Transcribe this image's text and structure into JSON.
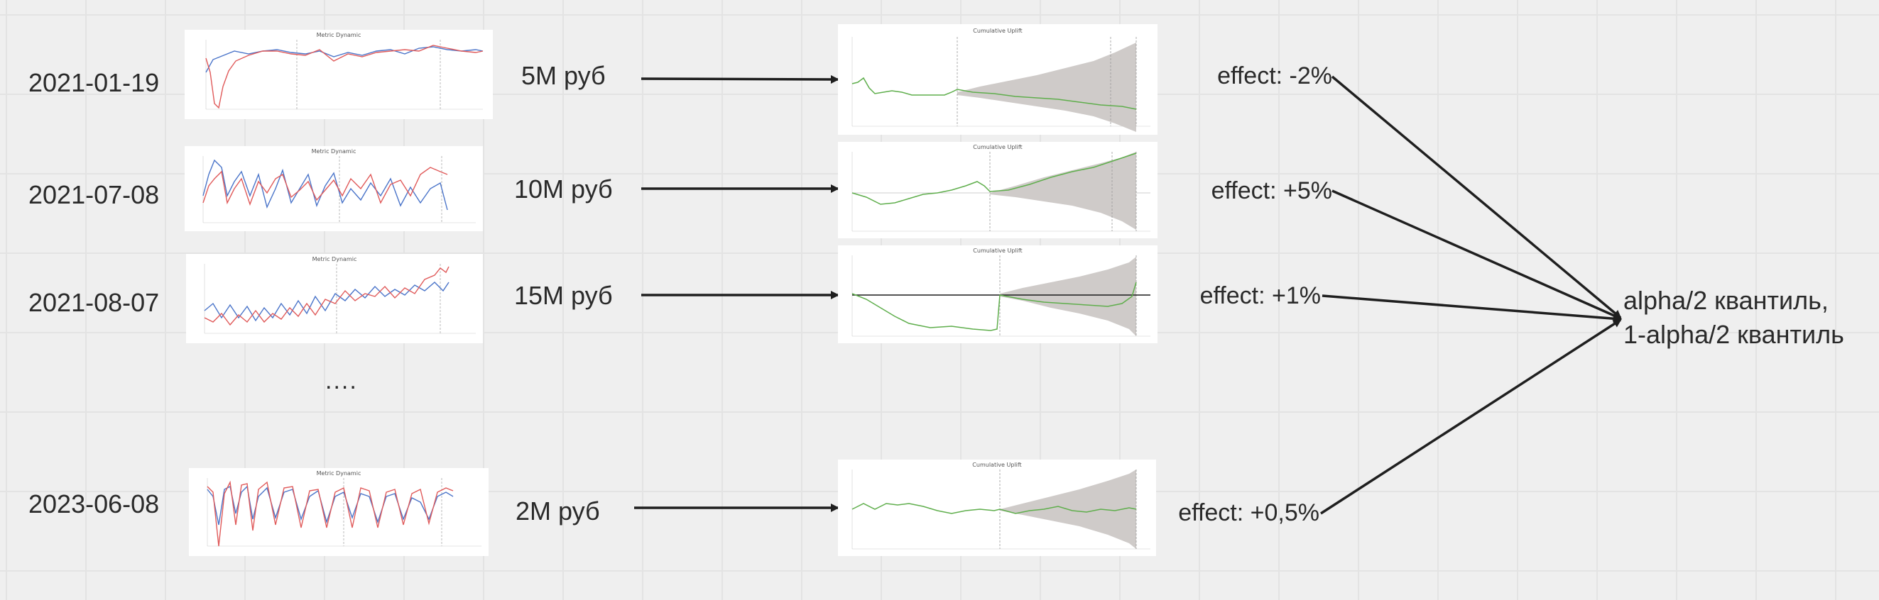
{
  "rows": [
    {
      "date": "2021-01-19",
      "amount": "5M руб",
      "effect": "effect: -2%"
    },
    {
      "date": "2021-07-08",
      "amount": "10M руб",
      "effect": "effect: +5%"
    },
    {
      "date": "2021-08-07",
      "amount": "15M руб",
      "effect": "effect: +1%"
    },
    {
      "date": "2023-06-08",
      "amount": "2M руб",
      "effect": "effect: +0,5%"
    }
  ],
  "ellipsis": "....",
  "target": {
    "line1": "alpha/2 квантиль,",
    "line2": "1-alpha/2 квантиль"
  },
  "thumbnails": {
    "metric_title": "Metric Dynamic",
    "uplift_title": "Cumulative Uplift"
  },
  "colors": {
    "test": "#e05a5a",
    "control": "#4a74c9",
    "uplift": "#5fae4c",
    "band": "#cfcbc9",
    "arrow": "#1f1f1f"
  }
}
